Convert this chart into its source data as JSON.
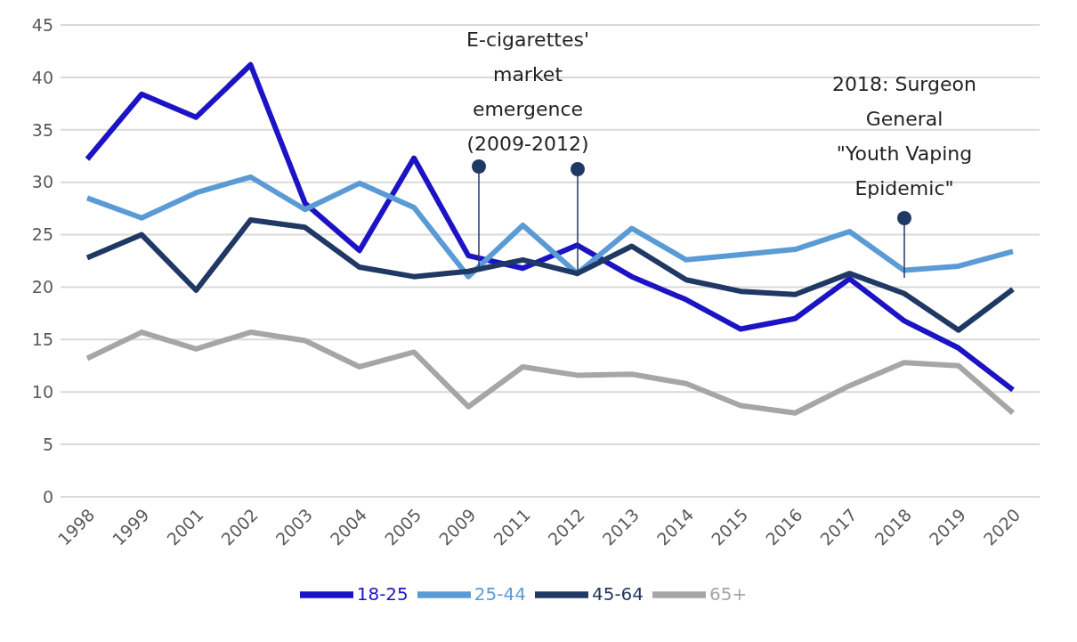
{
  "chart_data": {
    "type": "line",
    "categories": [
      "1998",
      "1999",
      "2001",
      "2002",
      "2003",
      "2004",
      "2005",
      "2009",
      "2011",
      "2012",
      "2013",
      "2014",
      "2015",
      "2016",
      "2017",
      "2018",
      "2019",
      "2020"
    ],
    "series": [
      {
        "name": "18-25",
        "color": "#1c14c4",
        "values": [
          32.2,
          38.4,
          36.2,
          41.2,
          28.0,
          23.5,
          32.3,
          23.0,
          21.8,
          24.0,
          21.0,
          18.8,
          16.0,
          17.0,
          20.8,
          16.8,
          14.2,
          10.2
        ]
      },
      {
        "name": "25-44",
        "color": "#5b9bd5",
        "values": [
          28.5,
          26.6,
          29.0,
          30.5,
          27.4,
          29.9,
          27.6,
          21.0,
          25.9,
          21.3,
          25.6,
          22.6,
          23.1,
          23.6,
          25.3,
          21.6,
          22.0,
          23.4
        ]
      },
      {
        "name": "45-64",
        "color": "#1f3864",
        "values": [
          22.8,
          25.0,
          19.7,
          26.4,
          25.7,
          21.9,
          21.0,
          21.5,
          22.6,
          21.3,
          23.9,
          20.7,
          19.6,
          19.3,
          21.3,
          19.4,
          15.9,
          19.8
        ]
      },
      {
        "name": "65+",
        "color": "#a6a6a6",
        "values": [
          13.2,
          15.7,
          14.1,
          15.7,
          14.9,
          12.4,
          13.8,
          8.6,
          12.4,
          11.6,
          11.7,
          10.8,
          8.7,
          8.0,
          10.6,
          12.8,
          12.5,
          8.0
        ]
      }
    ],
    "ylim": [
      0,
      45
    ],
    "yticks": [
      0,
      5,
      10,
      15,
      20,
      25,
      30,
      35,
      40,
      45
    ],
    "grid": "y",
    "legend": "bottom",
    "marker": "none",
    "line_style": "solid",
    "annotations": [
      "E-cigarettes' market emergence (2009-2012)",
      "2018: Surgeon General \"Youth Vaping Epidemic\""
    ]
  }
}
